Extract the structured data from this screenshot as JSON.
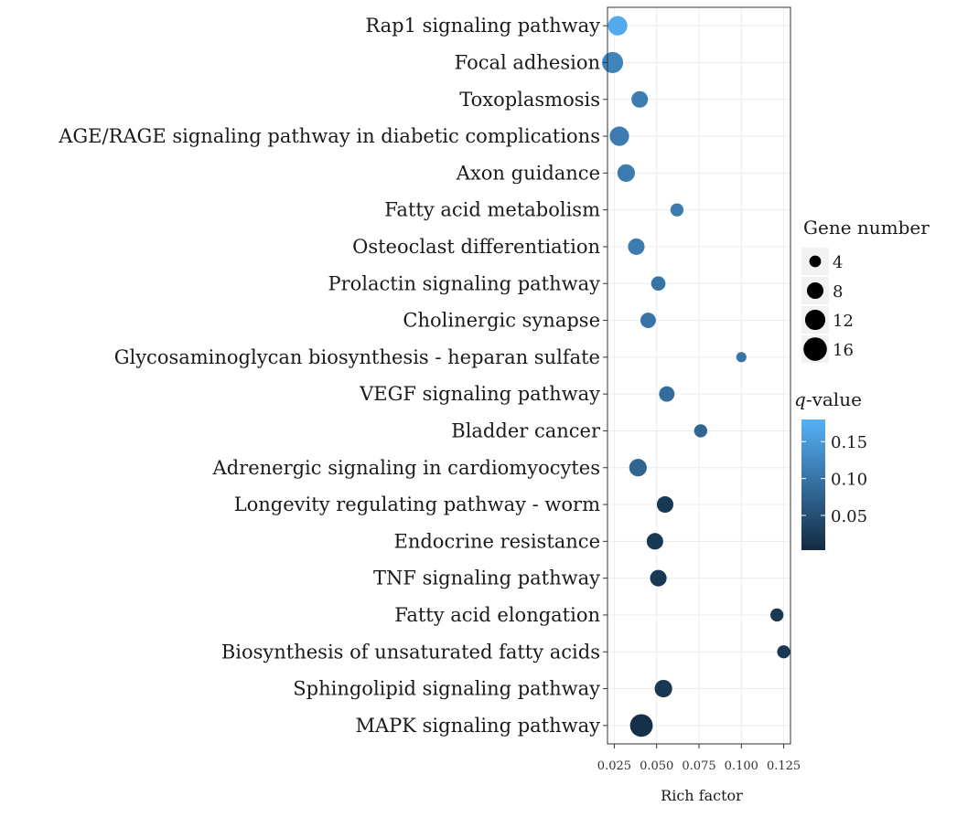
{
  "chart_data": {
    "type": "scatter",
    "title": "",
    "xlabel": "Rich factor",
    "ylabel": "",
    "xlim": [
      0.021,
      0.129
    ],
    "xticks": [
      0.025,
      0.05,
      0.075,
      0.1,
      0.125
    ],
    "xtick_labels": [
      "0.025",
      "0.050",
      "0.075",
      "0.100",
      "0.125"
    ],
    "grid": true,
    "colors": {
      "low": "#132b43",
      "high": "#56b1f7"
    },
    "categories": [
      "Rap1 signaling pathway",
      "Focal adhesion",
      "Toxoplasmosis",
      "AGE/RAGE signaling pathway in diabetic complications",
      "Axon guidance",
      "Fatty acid metabolism",
      "Osteoclast differentiation",
      "Prolactin signaling pathway",
      "Cholinergic synapse",
      "Glycosaminoglycan biosynthesis - heparan sulfate",
      "VEGF signaling pathway",
      "Bladder cancer",
      "Adrenergic signaling in cardiomyocytes",
      "Longevity regulating pathway - worm",
      "Endocrine resistance",
      "TNF signaling pathway",
      "Fatty acid elongation",
      "Biosynthesis of unsaturated fatty acids",
      "Sphingolipid signaling pathway",
      "MAPK signaling pathway"
    ],
    "rich_factor": [
      0.027,
      0.024,
      0.04,
      0.028,
      0.032,
      0.062,
      0.038,
      0.051,
      0.045,
      0.1,
      0.056,
      0.076,
      0.039,
      0.055,
      0.049,
      0.051,
      0.121,
      0.125,
      0.054,
      0.041
    ],
    "gene_number": [
      11,
      13,
      8,
      11,
      9,
      5,
      8,
      6,
      7,
      3,
      7,
      5,
      9,
      8,
      8,
      8,
      5,
      5,
      9,
      15
    ],
    "q_value": [
      0.17,
      0.12,
      0.11,
      0.11,
      0.11,
      0.11,
      0.11,
      0.1,
      0.1,
      0.1,
      0.09,
      0.08,
      0.08,
      0.02,
      0.02,
      0.02,
      0.02,
      0.02,
      0.02,
      0.01
    ],
    "size_legend": {
      "title": "Gene number",
      "values": [
        4,
        8,
        12,
        16
      ],
      "labels": [
        "4",
        "8",
        "12",
        "16"
      ]
    },
    "color_legend": {
      "title_italic": "q",
      "title_rest": "-value",
      "range": [
        0.003,
        0.18
      ],
      "ticks": [
        0.05,
        0.1,
        0.15
      ],
      "tick_labels": [
        "0.05",
        "0.10",
        "0.15"
      ]
    }
  }
}
